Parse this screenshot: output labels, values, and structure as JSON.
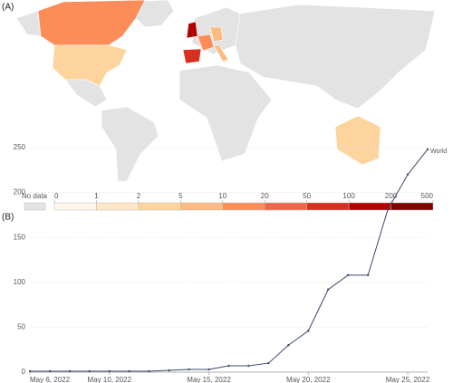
{
  "panels": [
    "(A)",
    "(B)"
  ],
  "map_legend": {
    "no_data_label": "No data",
    "no_data_color": "#e3e3e3",
    "ticks": [
      0,
      1,
      2,
      5,
      10,
      20,
      50,
      100,
      200,
      500
    ],
    "colors": [
      "#fff7ec",
      "#fee8c8",
      "#fdd49e",
      "#fdbb84",
      "#fc8d59",
      "#ef6548",
      "#d7301f",
      "#b30000",
      "#7f0000"
    ]
  },
  "chart_data": {
    "type": "line",
    "x": [
      "2022-05-06",
      "2022-05-07",
      "2022-05-08",
      "2022-05-09",
      "2022-05-10",
      "2022-05-11",
      "2022-05-12",
      "2022-05-13",
      "2022-05-14",
      "2022-05-15",
      "2022-05-16",
      "2022-05-17",
      "2022-05-18",
      "2022-05-19",
      "2022-05-20",
      "2022-05-21",
      "2022-05-22",
      "2022-05-23",
      "2022-05-24",
      "2022-05-25",
      "2022-05-26"
    ],
    "series": [
      {
        "name": "World",
        "color": "#3b4a6b",
        "values": [
          1,
          1,
          1,
          1,
          1,
          1,
          1,
          2,
          3,
          3,
          7,
          7,
          10,
          30,
          46,
          92,
          108,
          108,
          181,
          220,
          248
        ]
      }
    ],
    "xlim": [
      "2022-05-06",
      "2022-05-26"
    ],
    "xticks": [
      {
        "value": "2022-05-06",
        "label": "May 6, 2022"
      },
      {
        "value": "2022-05-10",
        "label": "May 10, 2022"
      },
      {
        "value": "2022-05-15",
        "label": "May 15, 2022"
      },
      {
        "value": "2022-05-20",
        "label": "May 20, 2022"
      },
      {
        "value": "2022-05-25",
        "label": "May 25, 2022"
      }
    ],
    "ylim": [
      0,
      250
    ],
    "yticks": [
      0,
      50,
      100,
      150,
      200,
      250
    ],
    "grid": true
  }
}
